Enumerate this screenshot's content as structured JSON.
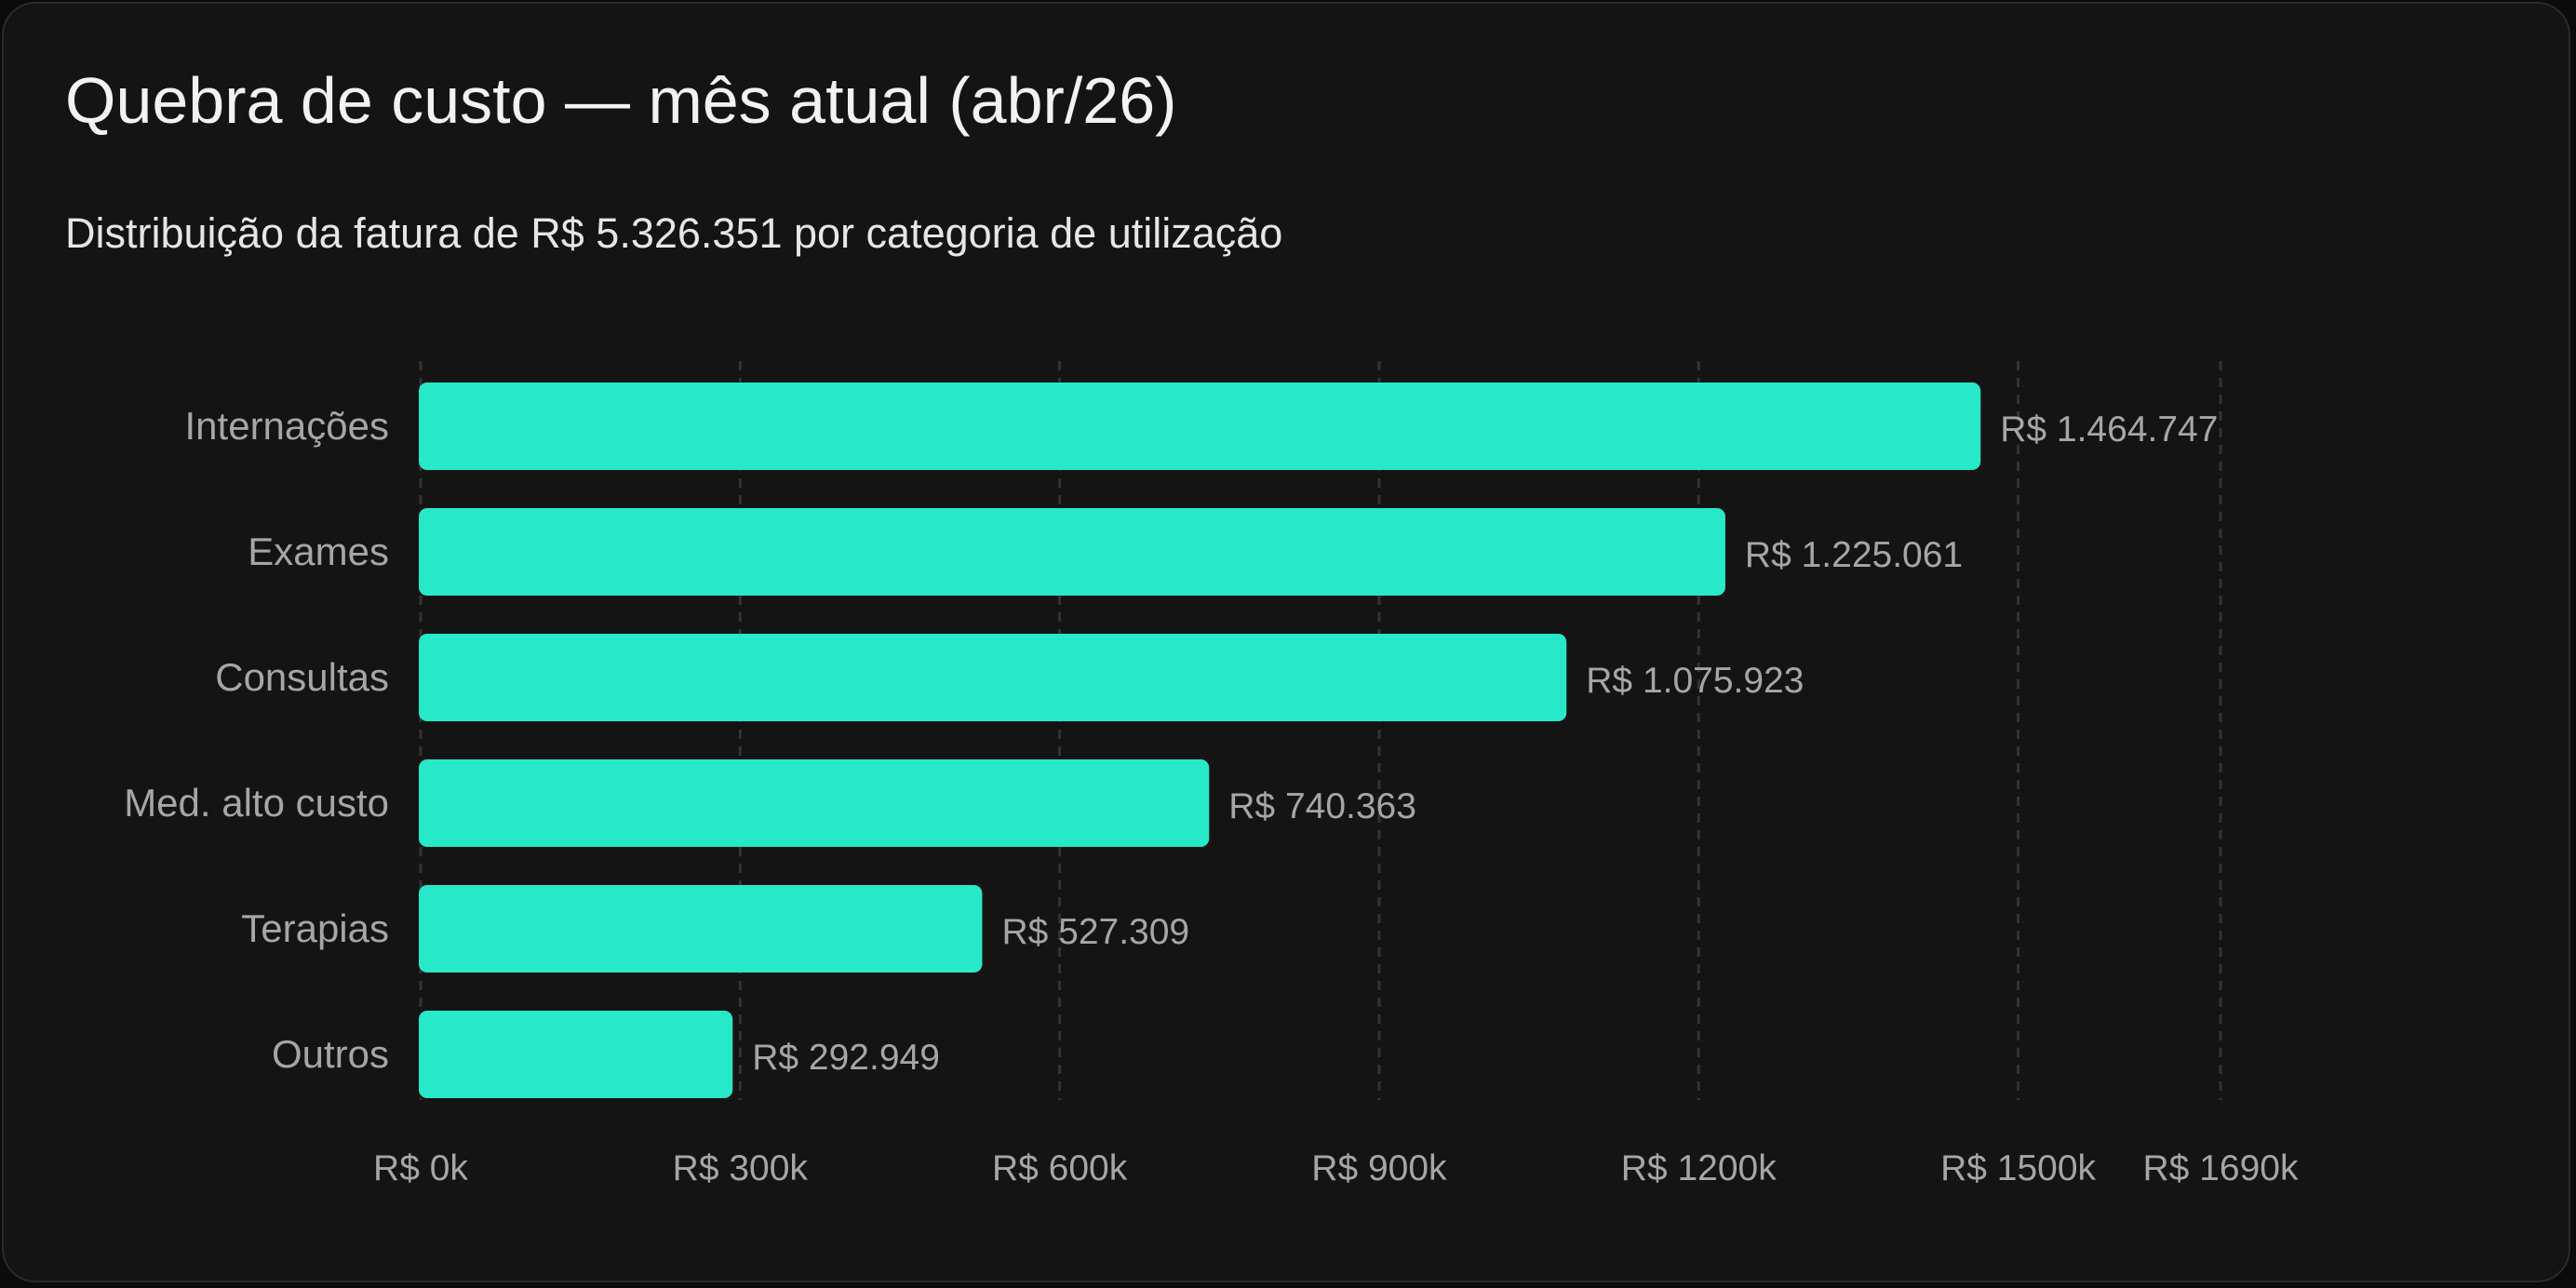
{
  "header": {
    "title": "Quebra de custo — mês atual (abr/26)",
    "subtitle": "Distribuição da fatura de R$ 5.326.351 por categoria de utilização"
  },
  "colors": {
    "background": "#141414",
    "bar": "#27e8c8",
    "grid": "#333333",
    "label": "#a6a6a6"
  },
  "chart_data": {
    "type": "bar",
    "orientation": "horizontal",
    "title": "Quebra de custo — mês atual (abr/26)",
    "subtitle": "Distribuição da fatura de R$ 5.326.351 por categoria de utilização",
    "categories": [
      "Internações",
      "Exames",
      "Consultas",
      "Med. alto custo",
      "Terapias",
      "Outros"
    ],
    "values": [
      1464747,
      1225061,
      1075923,
      740363,
      527309,
      292949
    ],
    "value_labels": [
      "R$ 1.464.747",
      "R$ 1.225.061",
      "R$ 1.075.923",
      "R$ 740.363",
      "R$ 527.309",
      "R$ 292.949"
    ],
    "xlim": [
      0,
      1690000
    ],
    "xticks": [
      0,
      300000,
      600000,
      900000,
      1200000,
      1500000,
      1690000
    ],
    "xtick_labels": [
      "R$ 0k",
      "R$ 300k",
      "R$ 600k",
      "R$ 900k",
      "R$ 1200k",
      "R$ 1500k",
      "R$ 1690k"
    ],
    "xlabel": "",
    "ylabel": "",
    "grid": "vertical-dashed",
    "legend": "none"
  }
}
